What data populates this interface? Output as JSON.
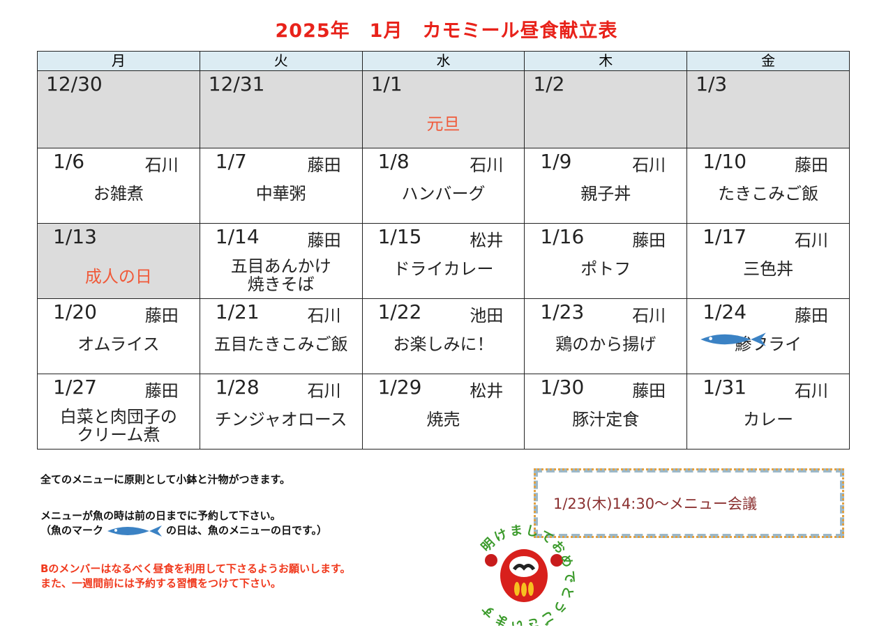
{
  "title": {
    "year": "2025年",
    "month": "1月",
    "name": "カモミール昼食献立表"
  },
  "weekdays": [
    "月",
    "火",
    "水",
    "木",
    "金"
  ],
  "weeks": [
    [
      {
        "date": "12/30",
        "staff": "",
        "menu": "",
        "holiday": "",
        "closed": true
      },
      {
        "date": "12/31",
        "staff": "",
        "menu": "",
        "holiday": "",
        "closed": true
      },
      {
        "date": "1/1",
        "staff": "",
        "menu": "",
        "holiday": "元旦",
        "closed": true
      },
      {
        "date": "1/2",
        "staff": "",
        "menu": "",
        "holiday": "",
        "closed": true
      },
      {
        "date": "1/3",
        "staff": "",
        "menu": "",
        "holiday": "",
        "closed": true
      }
    ],
    [
      {
        "date": "1/6",
        "staff": "石川",
        "menu": "お雑煮"
      },
      {
        "date": "1/7",
        "staff": "藤田",
        "menu": "中華粥"
      },
      {
        "date": "1/8",
        "staff": "石川",
        "menu": "ハンバーグ"
      },
      {
        "date": "1/9",
        "staff": "石川",
        "menu": "親子丼"
      },
      {
        "date": "1/10",
        "staff": "藤田",
        "menu": "たきこみご飯"
      }
    ],
    [
      {
        "date": "1/13",
        "staff": "",
        "menu": "",
        "holiday": "成人の日",
        "closed": true
      },
      {
        "date": "1/14",
        "staff": "藤田",
        "menu": "五目あんかけ\n焼きそば"
      },
      {
        "date": "1/15",
        "staff": "松井",
        "menu": "ドライカレー"
      },
      {
        "date": "1/16",
        "staff": "藤田",
        "menu": "ポトフ"
      },
      {
        "date": "1/17",
        "staff": "石川",
        "menu": "三色丼"
      }
    ],
    [
      {
        "date": "1/20",
        "staff": "藤田",
        "menu": "オムライス"
      },
      {
        "date": "1/21",
        "staff": "石川",
        "menu": "五目たきこみご飯"
      },
      {
        "date": "1/22",
        "staff": "池田",
        "menu": "お楽しみに！"
      },
      {
        "date": "1/23",
        "staff": "石川",
        "menu": "鶏のから揚げ"
      },
      {
        "date": "1/24",
        "staff": "藤田",
        "menu": "鯵フライ",
        "fish": true
      }
    ],
    [
      {
        "date": "1/27",
        "staff": "藤田",
        "menu": "白菜と肉団子の\nクリーム煮"
      },
      {
        "date": "1/28",
        "staff": "石川",
        "menu": "チンジャオロース"
      },
      {
        "date": "1/29",
        "staff": "松井",
        "menu": "焼売"
      },
      {
        "date": "1/30",
        "staff": "藤田",
        "menu": "豚汁定食"
      },
      {
        "date": "1/31",
        "staff": "石川",
        "menu": "カレー"
      }
    ]
  ],
  "notes": {
    "line1": "全てのメニューに原則として小鉢と汁物がつきます。",
    "line2": "メニューが魚の時は前の日までに予約して下さい。",
    "line3a": "（魚のマーク",
    "line3b": "の日は、魚のメニューの日です。）",
    "line4": "Bのメンバーはなるべく昼食を利用して下さるようお願いします。",
    "line5": "また、一週間前には予約する習慣をつけて下さい。"
  },
  "meeting": "1/23(木)14:30～メニュー会議",
  "greeting": "明けましておめでとうございます",
  "colors": {
    "title": "#e8221a",
    "header": "#dcecf3",
    "closed": "#dcdcdc",
    "holiday": "#f05a3a",
    "fish": "#3b82c4"
  }
}
